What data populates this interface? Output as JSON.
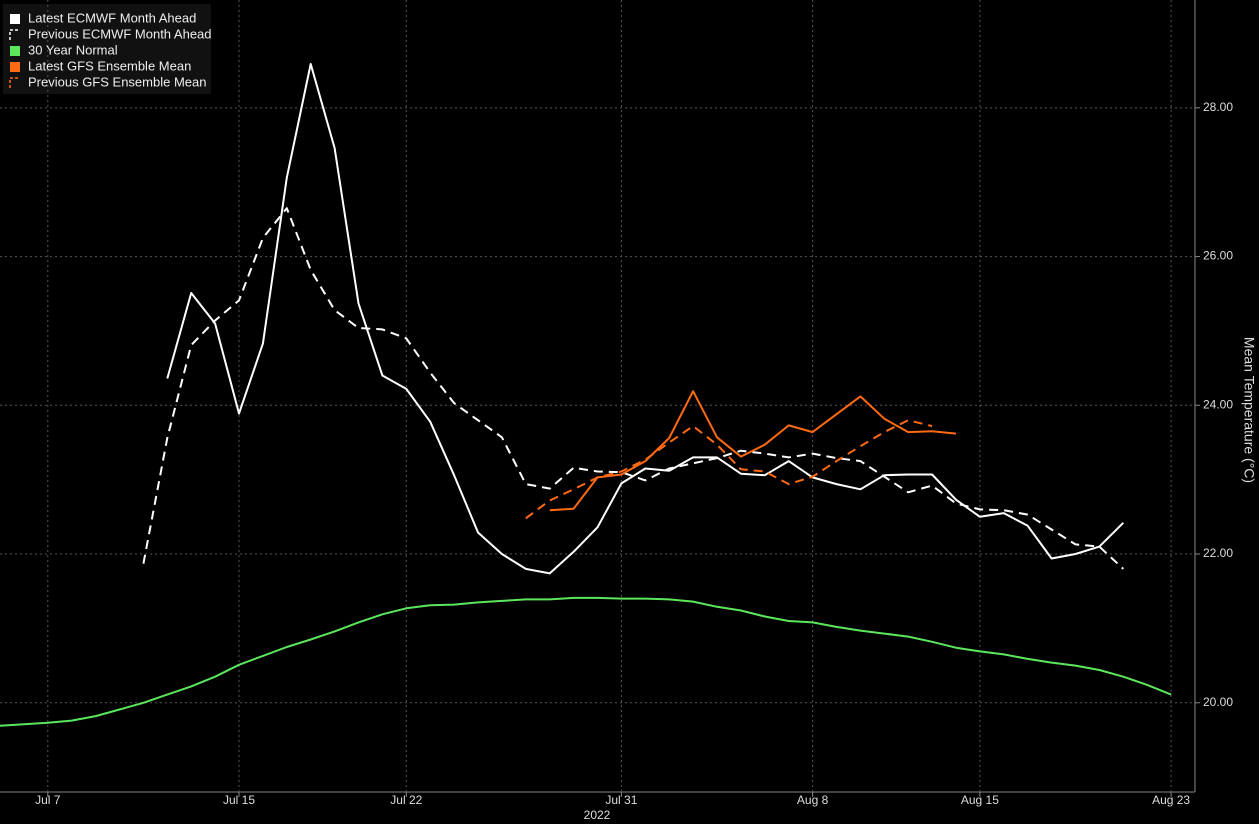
{
  "chart_data": {
    "type": "line",
    "xlabel": "2022",
    "ylabel": "Mean Temperature (°C)",
    "x": [
      "2022-07-05",
      "2022-07-06",
      "2022-07-07",
      "2022-07-08",
      "2022-07-09",
      "2022-07-10",
      "2022-07-11",
      "2022-07-12",
      "2022-07-13",
      "2022-07-14",
      "2022-07-15",
      "2022-07-16",
      "2022-07-17",
      "2022-07-18",
      "2022-07-19",
      "2022-07-20",
      "2022-07-21",
      "2022-07-22",
      "2022-07-23",
      "2022-07-24",
      "2022-07-25",
      "2022-07-26",
      "2022-07-27",
      "2022-07-28",
      "2022-07-29",
      "2022-07-30",
      "2022-07-31",
      "2022-08-01",
      "2022-08-02",
      "2022-08-03",
      "2022-08-04",
      "2022-08-05",
      "2022-08-06",
      "2022-08-07",
      "2022-08-08",
      "2022-08-09",
      "2022-08-10",
      "2022-08-11",
      "2022-08-12",
      "2022-08-13",
      "2022-08-14",
      "2022-08-15",
      "2022-08-16",
      "2022-08-17",
      "2022-08-18",
      "2022-08-19",
      "2022-08-20",
      "2022-08-21",
      "2022-08-22",
      "2022-08-23"
    ],
    "xlim": [
      "2022-07-05",
      "2022-08-24"
    ],
    "xticks": [
      {
        "value": "2022-07-07",
        "label": "Jul 7"
      },
      {
        "value": "2022-07-15",
        "label": "Jul 15"
      },
      {
        "value": "2022-07-22",
        "label": "Jul 22"
      },
      {
        "value": "2022-07-31",
        "label": "Jul 31"
      },
      {
        "value": "2022-08-08",
        "label": "Aug 8"
      },
      {
        "value": "2022-08-15",
        "label": "Aug 15"
      },
      {
        "value": "2022-08-23",
        "label": "Aug 23"
      }
    ],
    "ylim": [
      18.8,
      29.45
    ],
    "yticks": [
      {
        "value": 20,
        "label": "20.00"
      },
      {
        "value": 22,
        "label": "22.00"
      },
      {
        "value": 24,
        "label": "24.00"
      },
      {
        "value": 26,
        "label": "26.00"
      },
      {
        "value": 28,
        "label": "28.00"
      }
    ],
    "grid": true,
    "legend": "upper left",
    "series": [
      {
        "name": "Latest ECMWF Month Ahead",
        "color": "#ffffff",
        "dashed": false,
        "values": [
          null,
          null,
          null,
          null,
          null,
          null,
          null,
          24.36,
          25.51,
          25.1,
          23.89,
          24.83,
          27.06,
          28.59,
          27.46,
          25.37,
          24.4,
          24.22,
          23.78,
          23.06,
          22.29,
          22.0,
          21.8,
          21.74,
          22.03,
          22.36,
          22.95,
          23.15,
          23.12,
          23.3,
          23.3,
          23.08,
          23.06,
          23.25,
          23.03,
          22.94,
          22.87,
          23.06,
          23.07,
          23.07,
          22.73,
          22.5,
          22.55,
          22.38,
          21.94,
          22.0,
          22.1,
          22.42,
          null,
          null
        ]
      },
      {
        "name": "Previous ECMWF Month Ahead",
        "color": "#ffffff",
        "dashed": true,
        "values": [
          null,
          null,
          null,
          null,
          null,
          null,
          21.87,
          23.56,
          24.81,
          25.14,
          25.41,
          26.25,
          26.65,
          25.82,
          25.28,
          25.04,
          25.02,
          24.9,
          24.44,
          24.03,
          23.8,
          23.57,
          22.94,
          22.88,
          23.16,
          23.11,
          23.1,
          22.99,
          23.15,
          23.22,
          23.29,
          23.39,
          23.35,
          23.3,
          23.35,
          23.29,
          23.25,
          23.04,
          22.83,
          22.92,
          22.68,
          22.6,
          22.59,
          22.53,
          22.33,
          22.13,
          22.1,
          21.8,
          null,
          null
        ]
      },
      {
        "name": "30 Year Normal",
        "color": "#5ce65c",
        "dashed": false,
        "values": [
          19.69,
          19.71,
          19.73,
          19.76,
          19.82,
          19.91,
          20.0,
          20.11,
          20.22,
          20.35,
          20.51,
          20.63,
          20.75,
          20.85,
          20.96,
          21.08,
          21.19,
          21.27,
          21.31,
          21.32,
          21.35,
          21.37,
          21.39,
          21.39,
          21.41,
          21.41,
          21.4,
          21.4,
          21.39,
          21.36,
          21.29,
          21.24,
          21.16,
          21.1,
          21.08,
          21.02,
          20.97,
          20.93,
          20.89,
          20.82,
          20.74,
          20.69,
          20.65,
          20.59,
          20.54,
          20.5,
          20.44,
          20.35,
          20.24,
          20.11
        ]
      },
      {
        "name": "Latest GFS Ensemble Mean",
        "color": "#ff6a13",
        "dashed": false,
        "values": [
          null,
          null,
          null,
          null,
          null,
          null,
          null,
          null,
          null,
          null,
          null,
          null,
          null,
          null,
          null,
          null,
          null,
          null,
          null,
          null,
          null,
          null,
          null,
          22.59,
          22.61,
          23.03,
          23.07,
          23.25,
          23.56,
          24.19,
          23.57,
          23.31,
          23.47,
          23.73,
          23.64,
          23.88,
          24.12,
          23.82,
          23.64,
          23.65,
          23.62,
          null,
          null,
          null,
          null,
          null,
          null,
          null,
          null,
          null
        ]
      },
      {
        "name": "Previous GFS Ensemble Mean",
        "color": "#ff6a13",
        "dashed": true,
        "values": [
          null,
          null,
          null,
          null,
          null,
          null,
          null,
          null,
          null,
          null,
          null,
          null,
          null,
          null,
          null,
          null,
          null,
          null,
          null,
          null,
          null,
          null,
          22.48,
          22.72,
          22.87,
          23.03,
          23.11,
          23.27,
          23.5,
          23.72,
          23.47,
          23.14,
          23.11,
          22.94,
          23.04,
          23.25,
          23.45,
          23.64,
          23.8,
          23.72,
          null,
          null,
          null,
          null,
          null,
          null,
          null,
          null,
          null,
          null
        ]
      }
    ]
  }
}
